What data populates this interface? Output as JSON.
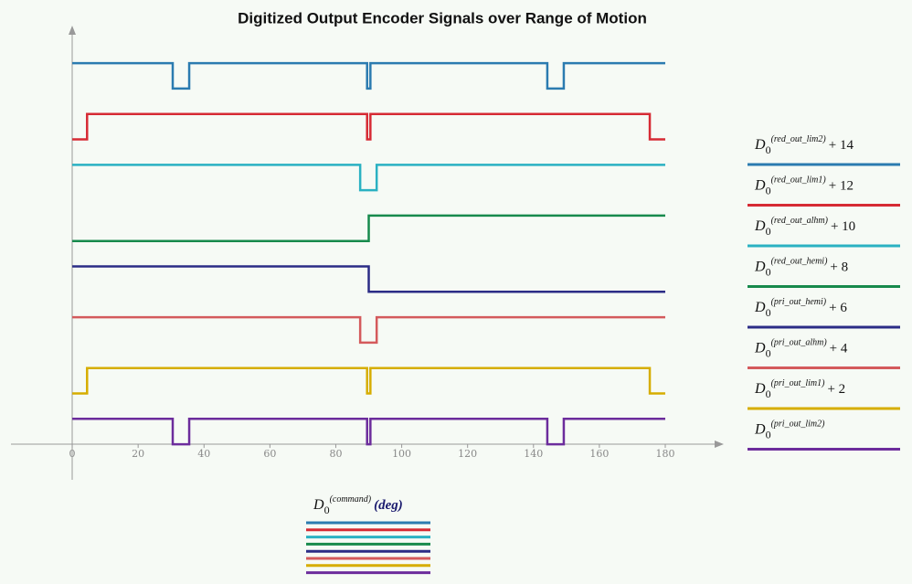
{
  "chart_data": {
    "type": "line",
    "title": "Digitized Output Encoder Signals over Range of Motion",
    "x_label": {
      "symbol": "D",
      "subscript": "0",
      "superscript": "(command)",
      "unit": "(deg)"
    },
    "xlim": [
      -18.6,
      197.2
    ],
    "xticks": [
      0,
      20,
      40,
      60,
      80,
      100,
      120,
      140,
      160,
      180
    ],
    "ylim": [
      -1.4,
      16.3
    ],
    "series": [
      {
        "name": {
          "symbol": "D",
          "subscript": "0",
          "superscript": "(red_out_lim2)",
          "suffix": "+ 14"
        },
        "color": "#2b7bb0",
        "x": [
          0,
          30.5,
          30.5,
          35.5,
          35.5,
          89.5,
          89.5,
          90.5,
          90.5,
          144.2,
          144.2,
          149.2,
          149.2,
          180
        ],
        "values": [
          15,
          15,
          14,
          14,
          15,
          15,
          14,
          14,
          15,
          15,
          14,
          14,
          15,
          15
        ]
      },
      {
        "name": {
          "symbol": "D",
          "subscript": "0",
          "superscript": "(red_out_lim1)",
          "suffix": "+ 12"
        },
        "color": "#d62a34",
        "x": [
          0,
          4.5,
          4.5,
          89.5,
          89.5,
          90.5,
          90.5,
          175.3,
          175.3,
          180
        ],
        "values": [
          12,
          12,
          13,
          13,
          12,
          12,
          13,
          13,
          12,
          12
        ]
      },
      {
        "name": {
          "symbol": "D",
          "subscript": "0",
          "superscript": "(red_out_alhm)",
          "suffix": "+ 10"
        },
        "color": "#2ab1c2",
        "x": [
          0,
          87.4,
          87.4,
          92.4,
          92.4,
          180
        ],
        "values": [
          11,
          11,
          10,
          10,
          11,
          11
        ]
      },
      {
        "name": {
          "symbol": "D",
          "subscript": "0",
          "superscript": "(red_out_hemi)",
          "suffix": "+ 8"
        },
        "color": "#178a4c",
        "x": [
          0,
          90,
          90,
          180
        ],
        "values": [
          8,
          8,
          9,
          9
        ]
      },
      {
        "name": {
          "symbol": "D",
          "subscript": "0",
          "superscript": "(pri_out_hemi)",
          "suffix": "+ 6"
        },
        "color": "#2b2c86",
        "x": [
          0,
          90,
          90,
          180
        ],
        "values": [
          7,
          7,
          6,
          6
        ]
      },
      {
        "name": {
          "symbol": "D",
          "subscript": "0",
          "superscript": "(pri_out_alhm)",
          "suffix": "+ 4"
        },
        "color": "#d45a5c",
        "x": [
          0,
          87.4,
          87.4,
          92.4,
          92.4,
          180
        ],
        "values": [
          5,
          5,
          4,
          4,
          5,
          5
        ]
      },
      {
        "name": {
          "symbol": "D",
          "subscript": "0",
          "superscript": "(pri_out_lim1)",
          "suffix": "+ 2"
        },
        "color": "#d6ad00",
        "x": [
          0,
          4.5,
          4.5,
          89.5,
          89.5,
          90.5,
          90.5,
          175.3,
          175.3,
          180
        ],
        "values": [
          2,
          2,
          3,
          3,
          2,
          2,
          3,
          3,
          2,
          2
        ]
      },
      {
        "name": {
          "symbol": "D",
          "subscript": "0",
          "superscript": "(pri_out_lim2)"
        },
        "color": "#6c2c9c",
        "x": [
          0,
          30.5,
          30.5,
          35.5,
          35.5,
          89.5,
          89.5,
          90.5,
          90.5,
          144.2,
          144.2,
          149.2,
          149.2,
          180
        ],
        "values": [
          1,
          1,
          0,
          0,
          1,
          1,
          0,
          0,
          1,
          1,
          0,
          0,
          1,
          1
        ]
      }
    ]
  }
}
